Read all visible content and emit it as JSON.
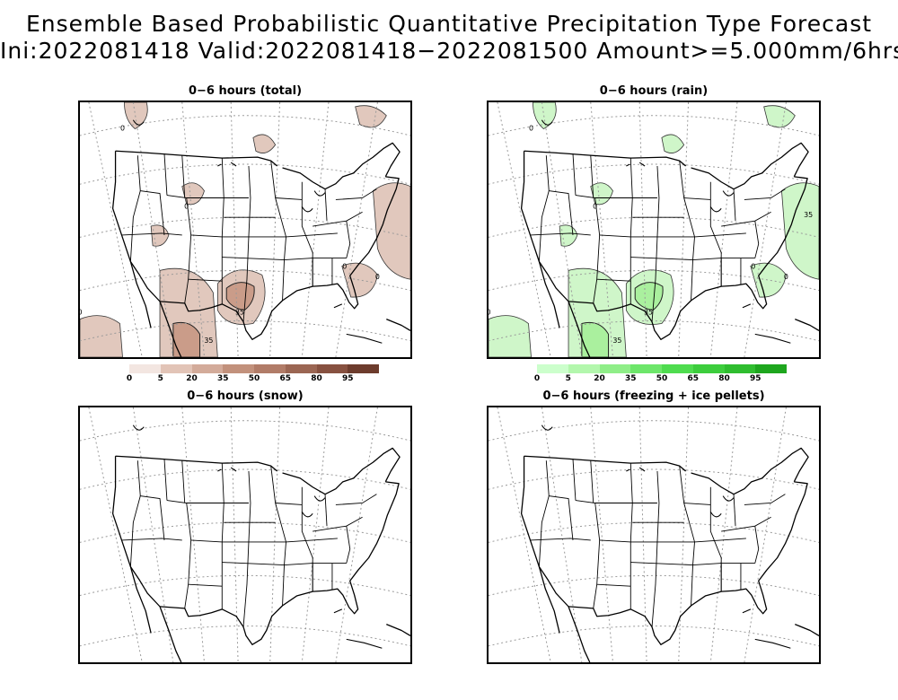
{
  "title": {
    "line1": "Ensemble Based Probabilistic Quantitative Precipitation Type Forecast",
    "line2": "Ini:2022081418 Valid:2022081418−2022081500 Amount>=5.000mm/6hrs"
  },
  "panels": [
    {
      "id": "total",
      "title": "0−6 hours (total)",
      "fill": "#c89a86",
      "contour_labels": [
        "0",
        "0",
        "0",
        "0",
        "0",
        "35",
        "35"
      ]
    },
    {
      "id": "rain",
      "title": "0−6 hours (rain)",
      "fill": "#a8ef9c",
      "contour_labels": [
        "0",
        "0",
        "0",
        "0",
        "0",
        "35",
        "35",
        "35"
      ]
    },
    {
      "id": "snow",
      "title": "0−6 hours (snow)"
    },
    {
      "id": "freezing",
      "title": "0−6 hours (freezing + ice pellets)"
    }
  ],
  "colorbars": [
    {
      "id": "total",
      "labels": [
        "0",
        "5",
        "20",
        "35",
        "50",
        "65",
        "80",
        "95"
      ],
      "colors": [
        "#f3e6e1",
        "#e2c4b7",
        "#d3ab9a",
        "#c2917c",
        "#b17c68",
        "#9b6653",
        "#875140",
        "#6d3c2d"
      ]
    },
    {
      "id": "rain",
      "labels": [
        "0",
        "5",
        "20",
        "35",
        "50",
        "65",
        "80",
        "95"
      ],
      "colors": [
        "#ccffcc",
        "#b3f7ad",
        "#8fee88",
        "#6de66a",
        "#4fdc4f",
        "#3dcd3d",
        "#2fbd2f",
        "#1ea61e"
      ]
    }
  ]
}
